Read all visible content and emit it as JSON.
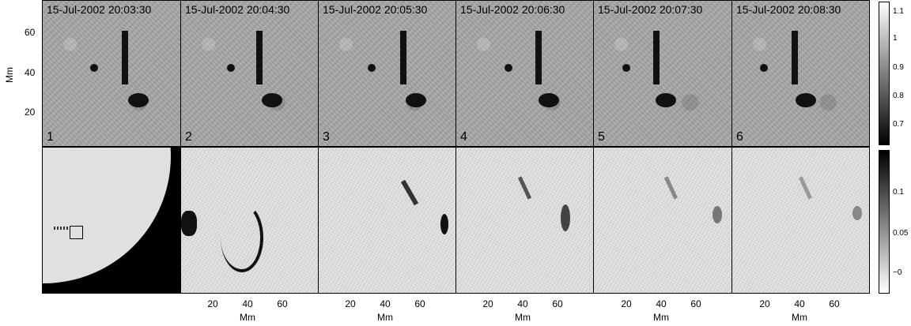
{
  "panels": [
    {
      "timestamp": "15-Jul-2002 20:03:30",
      "number": "1"
    },
    {
      "timestamp": "15-Jul-2002 20:04:30",
      "number": "2"
    },
    {
      "timestamp": "15-Jul-2002 20:05:30",
      "number": "3"
    },
    {
      "timestamp": "15-Jul-2002 20:06:30",
      "number": "4"
    },
    {
      "timestamp": "15-Jul-2002 20:07:30",
      "number": "5"
    },
    {
      "timestamp": "15-Jul-2002 20:08:30",
      "number": "6"
    }
  ],
  "y_axis": {
    "label": "Mm",
    "ticks": [
      "60",
      "40",
      "20"
    ]
  },
  "x_axis": {
    "label": "Mm",
    "ticks": [
      "20",
      "40",
      "60"
    ]
  },
  "colorbar_top": {
    "ticks": [
      "1.1",
      "1",
      "0.9",
      "0.8",
      "0.7"
    ]
  },
  "colorbar_bottom": {
    "ticks": [
      "0.1",
      "0.05",
      "−0"
    ]
  }
}
